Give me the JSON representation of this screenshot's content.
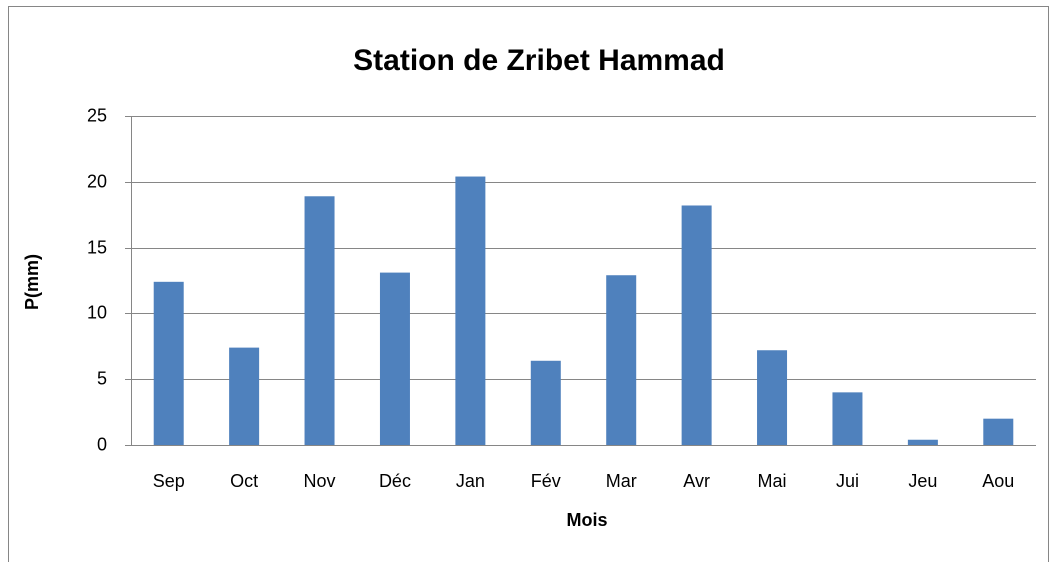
{
  "chart_data": {
    "type": "bar",
    "title": "Station de Zribet Hammad",
    "x_label": "Mois",
    "y_label": "P(mm)",
    "categories": [
      "Sep",
      "Oct",
      "Nov",
      "Déc",
      "Jan",
      "Fév",
      "Mar",
      "Avr",
      "Mai",
      "Jui",
      "Jeu",
      "Aou"
    ],
    "values": [
      12.4,
      7.4,
      18.9,
      13.1,
      20.4,
      6.4,
      12.9,
      18.2,
      7.2,
      4.0,
      0.4,
      2.0
    ],
    "color": "#4f81bd",
    "ylim": [
      0,
      25
    ],
    "yticks": [
      0,
      5,
      10,
      15,
      20,
      25
    ],
    "grid": true
  }
}
